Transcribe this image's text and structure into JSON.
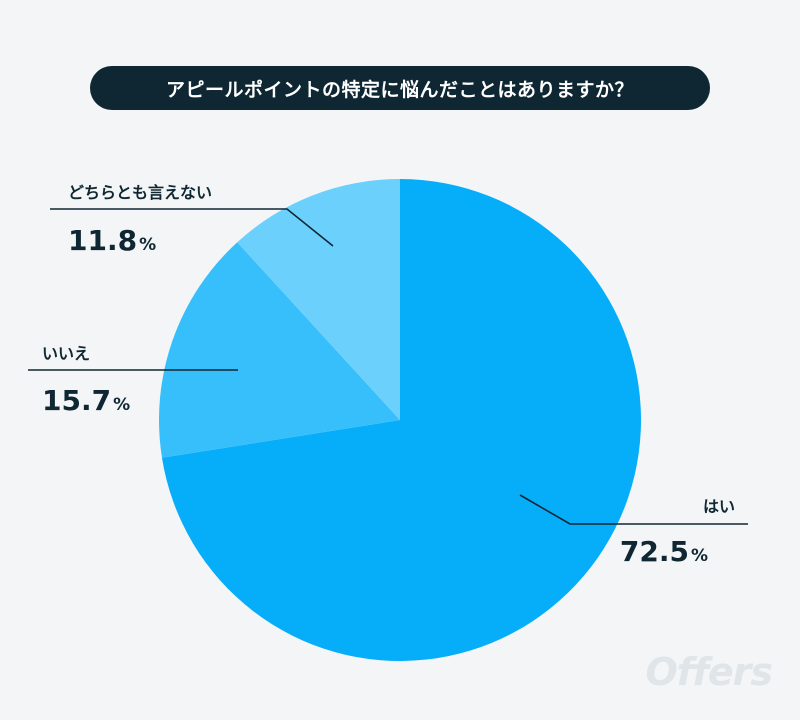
{
  "title": "アピールポイントの特定に悩んだことはありますか？",
  "brand": "Offers",
  "chart_data": {
    "type": "pie",
    "title": "アピールポイントの特定に悩んだことはありますか？",
    "slices": [
      {
        "label": "はい",
        "value": 72.5,
        "value_text": "72.5",
        "unit": "%",
        "color": "#06aef9"
      },
      {
        "label": "いいえ",
        "value": 15.7,
        "value_text": "15.7",
        "unit": "%",
        "color": "#37bffb"
      },
      {
        "label": "どちらとも言えない",
        "value": 11.8,
        "value_text": "11.8",
        "unit": "%",
        "color": "#6cd0fd"
      }
    ],
    "start": "12 o'clock",
    "direction": "clockwise"
  }
}
